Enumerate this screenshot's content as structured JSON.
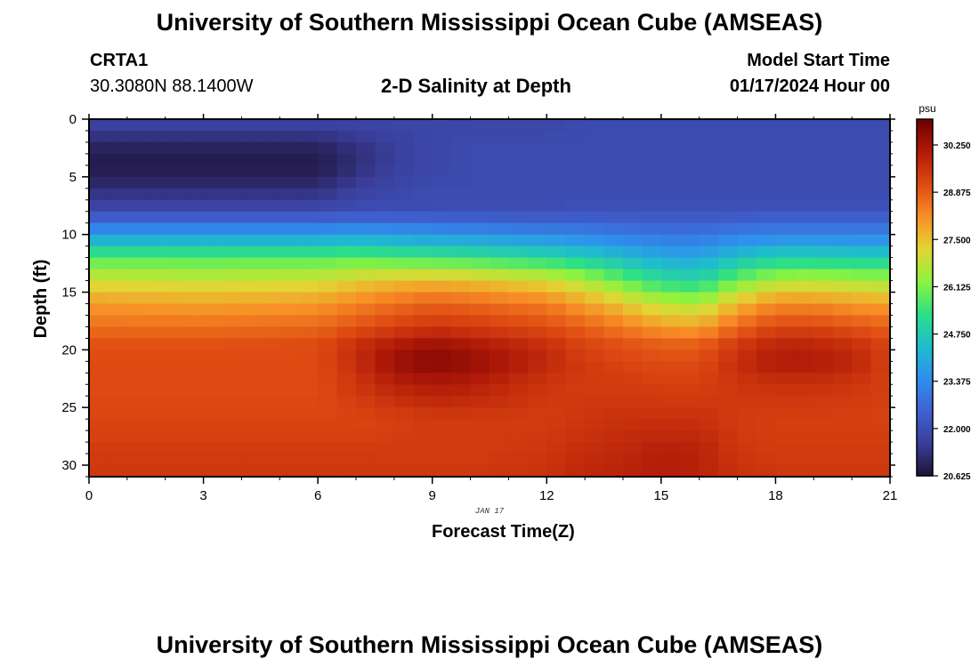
{
  "header": {
    "title": "University of Southern Mississippi Ocean Cube (AMSEAS)",
    "station": "CRTA1",
    "coords": "30.3080N  88.1400W",
    "subtitle": "2-D Salinity at Depth",
    "start_label": "Model Start Time",
    "start_value": "01/17/2024 Hour 00"
  },
  "footer": {
    "title": "University of Southern Mississippi Ocean Cube (AMSEAS)"
  },
  "colors": {
    "colormap": [
      "#1e1236",
      "#3a3e9a",
      "#3f62d2",
      "#2f8fee",
      "#1fbdcc",
      "#2ddf86",
      "#8ef33e",
      "#e3d534",
      "#f88e26",
      "#de4a12",
      "#b11a08",
      "#6e0000"
    ]
  },
  "chart_data": {
    "type": "heatmap",
    "title": "2-D Salinity at Depth",
    "xlabel": "Forecast Time(Z)",
    "ylabel": "Depth (ft)",
    "date_label": "JAN 17",
    "xlim": [
      0,
      21
    ],
    "ylim": [
      0,
      31
    ],
    "x_ticks": [
      "0",
      "3",
      "6",
      "9",
      "12",
      "15",
      "18",
      "21"
    ],
    "y_ticks": [
      "0",
      "5",
      "10",
      "15",
      "20",
      "25",
      "30"
    ],
    "colorbar": {
      "unit": "psu",
      "min": 20.625,
      "max": 31.0,
      "ticks": [
        "30.250",
        "28.875",
        "27.500",
        "26.125",
        "24.750",
        "23.375",
        "22.000",
        "20.625"
      ]
    },
    "depth_profiles_ft": [
      0,
      2.5,
      4,
      6,
      8,
      10,
      12,
      14,
      16,
      18,
      19.5,
      21,
      23,
      26,
      29,
      31
    ],
    "profile_hours": [
      0,
      3,
      6,
      7,
      8,
      9,
      10,
      12,
      13,
      14,
      15,
      16,
      17,
      18,
      19,
      20,
      21
    ],
    "salinity_psu": [
      [
        21.8,
        21.0,
        20.8,
        21.2,
        21.9,
        23.7,
        25.7,
        27.0,
        28.0,
        28.6,
        29.0,
        29.1,
        29.1,
        29.2,
        29.4,
        29.5
      ],
      [
        21.8,
        21.0,
        20.8,
        21.2,
        21.9,
        23.7,
        25.7,
        26.9,
        27.9,
        28.6,
        29.0,
        29.1,
        29.1,
        29.2,
        29.4,
        29.5
      ],
      [
        21.8,
        21.0,
        20.8,
        21.2,
        21.9,
        23.7,
        25.7,
        27.0,
        28.0,
        28.7,
        29.1,
        29.1,
        29.1,
        29.2,
        29.4,
        29.5
      ],
      [
        21.8,
        21.3,
        21.2,
        21.6,
        22.0,
        23.8,
        25.8,
        27.3,
        28.3,
        29.0,
        29.6,
        29.7,
        29.5,
        29.2,
        29.4,
        29.5
      ],
      [
        21.8,
        21.6,
        21.6,
        21.8,
        22.0,
        23.7,
        25.6,
        27.5,
        28.6,
        29.3,
        30.0,
        30.4,
        29.9,
        29.3,
        29.4,
        29.5
      ],
      [
        21.8,
        21.8,
        21.8,
        21.9,
        22.0,
        23.6,
        25.5,
        27.6,
        28.8,
        29.5,
        30.3,
        30.7,
        30.1,
        29.4,
        29.4,
        29.5
      ],
      [
        21.8,
        21.9,
        21.9,
        21.9,
        22.0,
        23.5,
        25.4,
        27.5,
        28.7,
        29.4,
        30.1,
        30.5,
        30.0,
        29.4,
        29.4,
        29.5
      ],
      [
        21.8,
        21.9,
        21.9,
        21.9,
        22.0,
        23.3,
        25.1,
        27.1,
        28.4,
        29.1,
        29.6,
        29.8,
        29.5,
        29.4,
        29.5,
        29.6
      ],
      [
        21.9,
        21.9,
        21.9,
        21.9,
        22.1,
        23.2,
        24.8,
        26.6,
        27.9,
        28.8,
        29.2,
        29.4,
        29.4,
        29.5,
        29.7,
        29.8
      ],
      [
        21.9,
        21.9,
        21.9,
        21.9,
        22.1,
        23.0,
        24.4,
        25.9,
        27.4,
        28.4,
        29.0,
        29.2,
        29.4,
        29.6,
        29.8,
        29.9
      ],
      [
        21.9,
        21.9,
        21.9,
        21.9,
        22.1,
        22.9,
        24.0,
        25.2,
        26.8,
        28.0,
        28.8,
        29.1,
        29.3,
        29.6,
        30.0,
        30.0
      ],
      [
        21.9,
        21.9,
        21.9,
        21.9,
        22.1,
        22.9,
        23.9,
        25.0,
        26.6,
        27.9,
        28.8,
        29.1,
        29.3,
        29.6,
        29.9,
        29.9
      ],
      [
        21.9,
        21.9,
        21.9,
        21.9,
        22.1,
        23.1,
        24.5,
        26.0,
        27.6,
        28.7,
        29.4,
        29.7,
        29.5,
        29.4,
        29.5,
        29.6
      ],
      [
        21.9,
        21.9,
        21.9,
        21.9,
        22.1,
        23.2,
        24.9,
        26.6,
        28.2,
        29.2,
        29.8,
        30.1,
        29.6,
        29.3,
        29.4,
        29.5
      ],
      [
        21.9,
        21.9,
        21.9,
        21.9,
        22.1,
        23.2,
        24.9,
        26.7,
        28.2,
        29.2,
        29.8,
        30.1,
        29.6,
        29.3,
        29.4,
        29.5
      ],
      [
        21.9,
        21.9,
        21.9,
        21.9,
        22.1,
        23.2,
        24.8,
        26.6,
        28.0,
        29.0,
        29.6,
        29.9,
        29.5,
        29.3,
        29.4,
        29.5
      ],
      [
        21.9,
        21.9,
        21.9,
        21.9,
        22.1,
        23.2,
        24.8,
        26.5,
        27.9,
        28.8,
        29.2,
        29.3,
        29.3,
        29.3,
        29.4,
        29.5
      ]
    ]
  }
}
